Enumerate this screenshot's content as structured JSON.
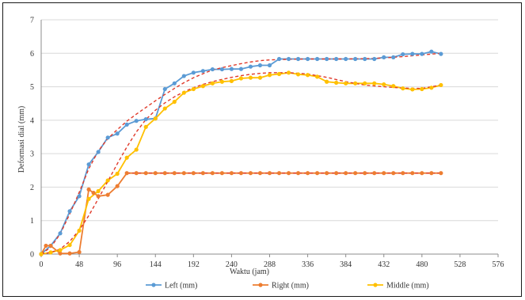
{
  "chart_data": {
    "type": "line",
    "xlabel": "Waktu (jam)",
    "ylabel": "Deformasi dial (mm)",
    "xlim": [
      0,
      576
    ],
    "ylim": [
      0,
      7
    ],
    "x_ticks": [
      "0",
      "48",
      "96",
      "144",
      "192",
      "240",
      "288",
      "336",
      "384",
      "432",
      "480",
      "528",
      "576"
    ],
    "y_ticks": [
      "0",
      "1",
      "2",
      "3",
      "4",
      "5",
      "6",
      "7"
    ],
    "grid": "horizontal",
    "legend_position": "bottom",
    "series": [
      {
        "name": "Left (mm)",
        "color": "#5b9bd5",
        "x": [
          0,
          12,
          24,
          36,
          48,
          60,
          72,
          84,
          96,
          108,
          120,
          132,
          144,
          156,
          168,
          180,
          192,
          204,
          216,
          228,
          240,
          252,
          264,
          276,
          288,
          300,
          312,
          324,
          336,
          348,
          360,
          372,
          384,
          396,
          408,
          420,
          432,
          444,
          456,
          468,
          480,
          492,
          504
        ],
        "y": [
          0,
          0.25,
          0.62,
          1.28,
          1.73,
          2.68,
          3.05,
          3.48,
          3.6,
          3.87,
          3.98,
          4.03,
          4.05,
          4.93,
          5.1,
          5.32,
          5.42,
          5.47,
          5.52,
          5.52,
          5.53,
          5.53,
          5.6,
          5.64,
          5.64,
          5.83,
          5.83,
          5.83,
          5.83,
          5.83,
          5.83,
          5.83,
          5.83,
          5.83,
          5.83,
          5.83,
          5.88,
          5.88,
          5.97,
          5.98,
          5.98,
          6.05,
          5.98
        ]
      },
      {
        "name": "Right (mm)",
        "color": "#ed7d31",
        "x": [
          0,
          6,
          12,
          24,
          36,
          48,
          60,
          66,
          72,
          84,
          96,
          108,
          120,
          132,
          144,
          156,
          168,
          180,
          192,
          204,
          216,
          228,
          240,
          252,
          264,
          276,
          288,
          300,
          312,
          324,
          336,
          348,
          360,
          372,
          384,
          396,
          408,
          420,
          432,
          444,
          456,
          468,
          480,
          492,
          504
        ],
        "y": [
          0,
          0.25,
          0.25,
          0.02,
          0.02,
          0.06,
          1.93,
          1.83,
          1.73,
          1.77,
          2.03,
          2.42,
          2.42,
          2.42,
          2.42,
          2.42,
          2.42,
          2.42,
          2.42,
          2.42,
          2.42,
          2.42,
          2.42,
          2.42,
          2.42,
          2.42,
          2.42,
          2.42,
          2.42,
          2.42,
          2.42,
          2.42,
          2.42,
          2.42,
          2.42,
          2.42,
          2.42,
          2.42,
          2.42,
          2.42,
          2.42,
          2.42,
          2.42,
          2.42,
          2.42
        ]
      },
      {
        "name": "Middle (mm)",
        "color": "#ffc000",
        "x": [
          0,
          12,
          24,
          36,
          48,
          60,
          72,
          84,
          96,
          108,
          120,
          132,
          144,
          156,
          168,
          180,
          192,
          204,
          216,
          228,
          240,
          252,
          264,
          276,
          288,
          300,
          312,
          324,
          336,
          348,
          360,
          372,
          384,
          396,
          408,
          420,
          432,
          444,
          456,
          468,
          480,
          492,
          504
        ],
        "y": [
          0,
          0.05,
          0.12,
          0.27,
          0.7,
          1.65,
          1.88,
          2.2,
          2.4,
          2.88,
          3.12,
          3.8,
          4.05,
          4.35,
          4.55,
          4.82,
          4.93,
          5.02,
          5.1,
          5.15,
          5.17,
          5.25,
          5.27,
          5.27,
          5.35,
          5.38,
          5.42,
          5.37,
          5.35,
          5.3,
          5.15,
          5.12,
          5.1,
          5.1,
          5.1,
          5.1,
          5.07,
          5.02,
          4.95,
          4.92,
          4.93,
          4.97,
          5.05
        ]
      }
    ],
    "trendlines": [
      {
        "color": "#e03a2a",
        "x": [
          0,
          12,
          24,
          36,
          48,
          60,
          72,
          84,
          96,
          108,
          120,
          132,
          144,
          156,
          168,
          180,
          192,
          204,
          216,
          228,
          240,
          252,
          264,
          276,
          288,
          312,
          336,
          360,
          384,
          408,
          432,
          456,
          480,
          504
        ],
        "y": [
          0,
          0.2,
          0.6,
          1.2,
          1.85,
          2.55,
          3.08,
          3.45,
          3.72,
          3.97,
          4.18,
          4.38,
          4.58,
          4.77,
          4.95,
          5.12,
          5.27,
          5.39,
          5.5,
          5.57,
          5.63,
          5.69,
          5.74,
          5.78,
          5.8,
          5.82,
          5.83,
          5.83,
          5.83,
          5.84,
          5.86,
          5.9,
          5.95,
          6.0
        ]
      },
      {
        "color": "#e03a2a",
        "x": [
          0,
          12,
          24,
          36,
          48,
          60,
          72,
          84,
          96,
          108,
          120,
          132,
          144,
          156,
          168,
          180,
          192,
          204,
          216,
          228,
          240,
          252,
          264,
          276,
          288,
          312,
          336,
          360,
          384,
          408,
          432,
          456,
          480,
          504
        ],
        "y": [
          0,
          0.05,
          0.15,
          0.38,
          0.72,
          1.15,
          1.65,
          2.17,
          2.7,
          3.2,
          3.65,
          4.02,
          4.3,
          4.52,
          4.7,
          4.85,
          4.97,
          5.07,
          5.15,
          5.22,
          5.28,
          5.33,
          5.37,
          5.4,
          5.42,
          5.42,
          5.38,
          5.28,
          5.15,
          5.05,
          5.0,
          4.96,
          4.95,
          5.05
        ]
      },
      {
        "color": "#e03a2a",
        "x": [
          108,
          504
        ],
        "y": [
          2.42,
          2.42
        ]
      }
    ]
  }
}
